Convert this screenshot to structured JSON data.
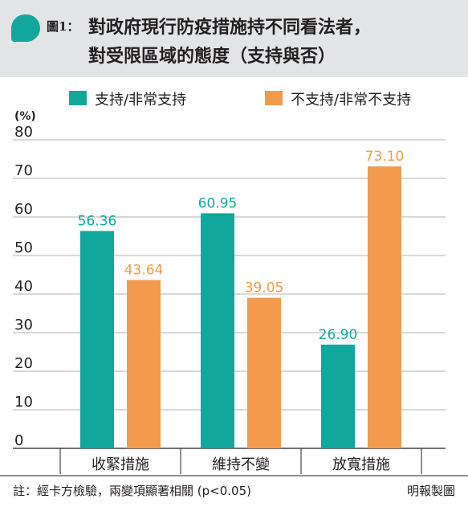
{
  "header": {
    "fig_label": "圖1：",
    "title_line1": "對政府現行防疫措施持不同看法者，",
    "title_line2": "對受限區域的態度（支持與否）"
  },
  "legend": [
    {
      "label": "支持/非常支持",
      "color": "#12a79d"
    },
    {
      "label": "不支持/非常不支持",
      "color": "#f39a4c"
    }
  ],
  "chart_data": {
    "type": "bar",
    "ylabel": "(%)",
    "ylim": [
      0,
      80
    ],
    "yticks": [
      "0",
      "10",
      "20",
      "30",
      "40",
      "50",
      "60",
      "70",
      "80"
    ],
    "categories": [
      "收緊措施",
      "維持不變",
      "放寬措施"
    ],
    "series": [
      {
        "name": "支持/非常支持",
        "values": [
          56.36,
          60.95,
          26.9
        ],
        "labels": [
          "56.36",
          "60.95",
          "26.90"
        ],
        "color": "#12a79d"
      },
      {
        "name": "不支持/非常不支持",
        "values": [
          43.64,
          39.05,
          73.1
        ],
        "labels": [
          "43.64",
          "39.05",
          "73.10"
        ],
        "color": "#f39a4c"
      }
    ]
  },
  "footer": {
    "note": "註：經卡方檢驗，兩變項顯著相關 (p<0.05)",
    "credit": "明報製圖"
  }
}
